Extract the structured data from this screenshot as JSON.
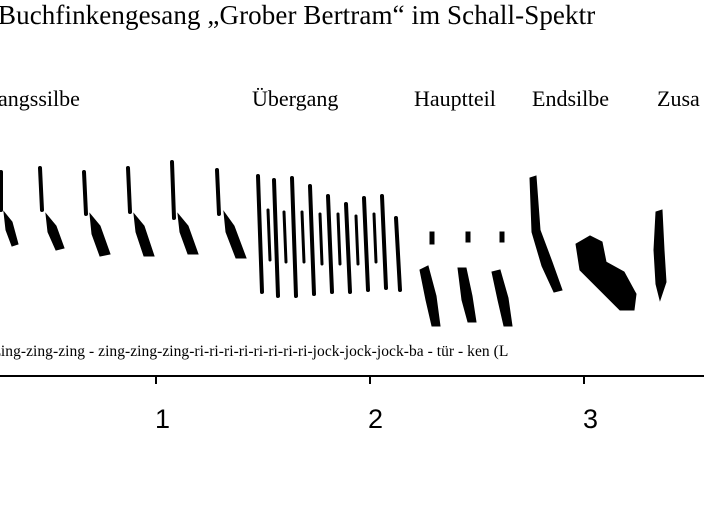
{
  "title": "Buchfinkengesang „Grober Bertram“ im Schall-Spektr",
  "sections": [
    {
      "id": "anfangssilbe",
      "label": "angssilbe"
    },
    {
      "id": "uebergang",
      "label": "Übergang"
    },
    {
      "id": "hauptteil",
      "label": "Hauptteil"
    },
    {
      "id": "endsilbe",
      "label": "Endsilbe"
    },
    {
      "id": "zusatz",
      "label": "Zusa"
    }
  ],
  "syllable_text": "zing-zing-zing - zing-zing-zing-ri-ri-ri-ri-ri-ri-ri-ri-jock-jock-jock-ba  -   tür   -   ken  (L",
  "axis": {
    "ticks": [
      "1",
      "2",
      "3"
    ]
  },
  "colors": {
    "ink": "#000000",
    "background": "#ffffff"
  }
}
